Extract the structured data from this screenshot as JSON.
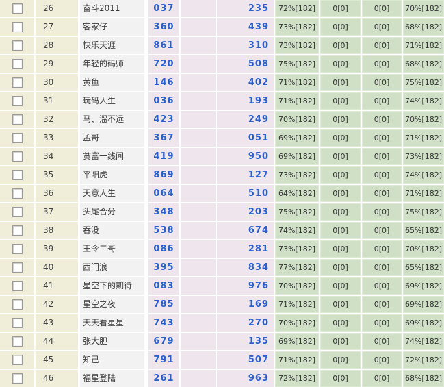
{
  "colors": {
    "row_index_bg": "#f0eed9",
    "name_cell_bg": "#f2f2f2",
    "number_cell_bg": "#eee6ec",
    "stat_cell_bg": "#cfe0c7",
    "number_link_blue": "#2a5fcc",
    "grid_line": "#ffffff"
  },
  "rows": [
    {
      "checked": false,
      "id": "26",
      "name": "奋斗2011",
      "n1": "037",
      "n2": "235",
      "s1": "72%[182]",
      "s2": "0[0]",
      "s3": "0[0]",
      "s4": "70%[182]"
    },
    {
      "checked": false,
      "id": "27",
      "name": "客家仔",
      "n1": "360",
      "n2": "439",
      "s1": "73%[182]",
      "s2": "0[0]",
      "s3": "0[0]",
      "s4": "68%[182]"
    },
    {
      "checked": false,
      "id": "28",
      "name": "快乐天涯",
      "n1": "861",
      "n2": "310",
      "s1": "73%[182]",
      "s2": "0[0]",
      "s3": "0[0]",
      "s4": "71%[182]"
    },
    {
      "checked": false,
      "id": "29",
      "name": "年轻的码师",
      "n1": "720",
      "n2": "508",
      "s1": "75%[182]",
      "s2": "0[0]",
      "s3": "0[0]",
      "s4": "68%[182]"
    },
    {
      "checked": false,
      "id": "30",
      "name": "黄鱼",
      "n1": "146",
      "n2": "402",
      "s1": "71%[182]",
      "s2": "0[0]",
      "s3": "0[0]",
      "s4": "75%[182]"
    },
    {
      "checked": false,
      "id": "31",
      "name": "玩码人生",
      "n1": "036",
      "n2": "193",
      "s1": "71%[182]",
      "s2": "0[0]",
      "s3": "0[0]",
      "s4": "74%[182]"
    },
    {
      "checked": false,
      "id": "32",
      "name": "马、溜不远",
      "n1": "423",
      "n2": "249",
      "s1": "70%[182]",
      "s2": "0[0]",
      "s3": "0[0]",
      "s4": "70%[182]"
    },
    {
      "checked": false,
      "id": "33",
      "name": "孟哥",
      "n1": "367",
      "n2": "051",
      "s1": "69%[182]",
      "s2": "0[0]",
      "s3": "0[0]",
      "s4": "71%[182]"
    },
    {
      "checked": false,
      "id": "34",
      "name": "贫富一线间",
      "n1": "419",
      "n2": "950",
      "s1": "69%[182]",
      "s2": "0[0]",
      "s3": "0[0]",
      "s4": "73%[182]"
    },
    {
      "checked": false,
      "id": "35",
      "name": "平阳虎",
      "n1": "869",
      "n2": "127",
      "s1": "73%[182]",
      "s2": "0[0]",
      "s3": "0[0]",
      "s4": "74%[182]"
    },
    {
      "checked": false,
      "id": "36",
      "name": "天意人生",
      "n1": "064",
      "n2": "510",
      "s1": "64%[182]",
      "s2": "0[0]",
      "s3": "0[0]",
      "s4": "71%[182]"
    },
    {
      "checked": false,
      "id": "37",
      "name": "头尾合分",
      "n1": "348",
      "n2": "203",
      "s1": "75%[182]",
      "s2": "0[0]",
      "s3": "0[0]",
      "s4": "75%[182]"
    },
    {
      "checked": false,
      "id": "38",
      "name": "吞没",
      "n1": "538",
      "n2": "674",
      "s1": "74%[182]",
      "s2": "0[0]",
      "s3": "0[0]",
      "s4": "65%[182]"
    },
    {
      "checked": false,
      "id": "39",
      "name": "王令二哥",
      "n1": "086",
      "n2": "281",
      "s1": "73%[182]",
      "s2": "0[0]",
      "s3": "0[0]",
      "s4": "70%[182]"
    },
    {
      "checked": false,
      "id": "40",
      "name": "西门浪",
      "n1": "395",
      "n2": "834",
      "s1": "77%[182]",
      "s2": "0[0]",
      "s3": "0[0]",
      "s4": "65%[182]"
    },
    {
      "checked": false,
      "id": "41",
      "name": "星空下的期待",
      "n1": "083",
      "n2": "976",
      "s1": "70%[182]",
      "s2": "0[0]",
      "s3": "0[0]",
      "s4": "69%[182]"
    },
    {
      "checked": false,
      "id": "42",
      "name": "星空之夜",
      "n1": "785",
      "n2": "169",
      "s1": "71%[182]",
      "s2": "0[0]",
      "s3": "0[0]",
      "s4": "69%[182]"
    },
    {
      "checked": false,
      "id": "43",
      "name": "天天看星星",
      "n1": "743",
      "n2": "270",
      "s1": "70%[182]",
      "s2": "0[0]",
      "s3": "0[0]",
      "s4": "69%[182]"
    },
    {
      "checked": false,
      "id": "44",
      "name": "张大胆",
      "n1": "679",
      "n2": "135",
      "s1": "69%[182]",
      "s2": "0[0]",
      "s3": "0[0]",
      "s4": "74%[182]"
    },
    {
      "checked": false,
      "id": "45",
      "name": "知己",
      "n1": "791",
      "n2": "507",
      "s1": "71%[182]",
      "s2": "0[0]",
      "s3": "0[0]",
      "s4": "72%[182]"
    },
    {
      "checked": false,
      "id": "46",
      "name": "福星登陆",
      "n1": "261",
      "n2": "963",
      "s1": "72%[182]",
      "s2": "0[0]",
      "s3": "0[0]",
      "s4": "68%[182]"
    }
  ]
}
